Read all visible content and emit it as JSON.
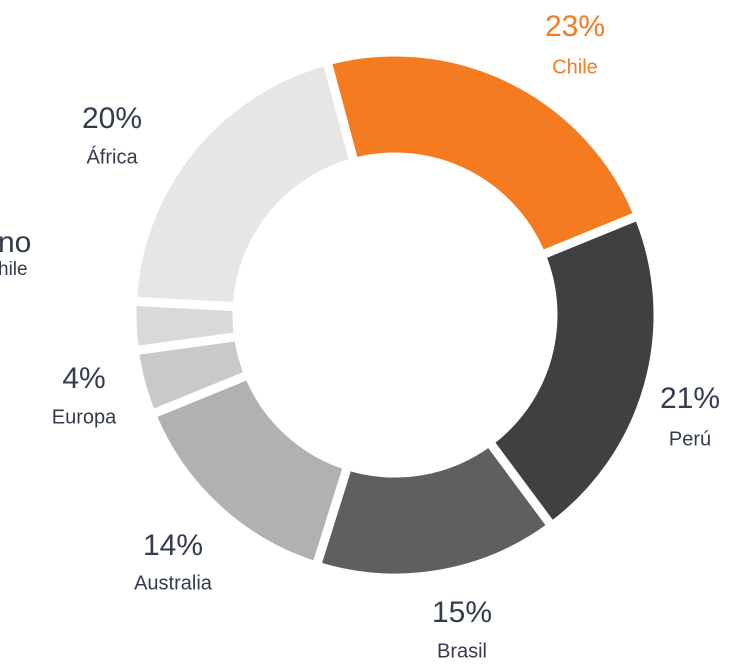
{
  "chart_data": {
    "type": "donut",
    "categories": [
      "Chile",
      "Perú",
      "Brasil",
      "Australia",
      "Europa",
      null,
      "África"
    ],
    "values": [
      23,
      21,
      15,
      14,
      4,
      3,
      20
    ],
    "value_labels": [
      "23%",
      "21%",
      "15%",
      "14%",
      "4%",
      null,
      "20%"
    ],
    "colors": [
      "#f47b20",
      "#404040",
      "#5f5f5f",
      "#b1b1b1",
      "#c9c9c9",
      "#d9d9d9",
      "#e6e6e6"
    ],
    "highlight_color": "#f47b20",
    "side_texts": [
      "no",
      "hile"
    ]
  }
}
